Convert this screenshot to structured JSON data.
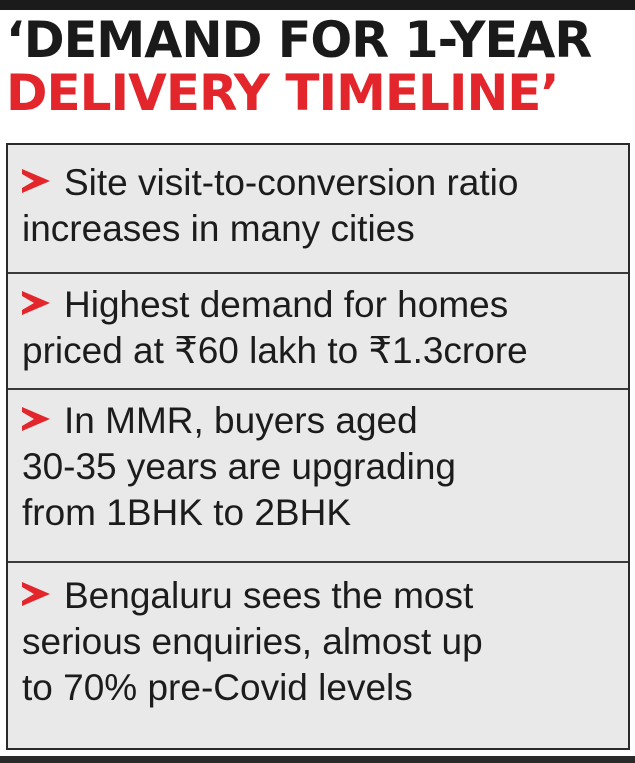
{
  "headline": {
    "line1": "‘DEMAND FOR 1-YEAR",
    "line2": "DELIVERY TIMELINE’"
  },
  "items": [
    {
      "lines": [
        "Site visit-to-conversion ratio",
        "increases in many cities"
      ]
    },
    {
      "lines": [
        "Highest demand for homes",
        "priced at ₹60 lakh to ₹1.3crore"
      ]
    },
    {
      "lines": [
        "In MMR, buyers aged",
        "30-35 years are upgrading",
        "from 1BHK to 2BHK"
      ]
    },
    {
      "lines": [
        "Bengaluru sees the most",
        "serious enquiries, almost up",
        "to 70% pre-Covid levels"
      ]
    }
  ],
  "colors": {
    "accent": "#e2262b",
    "text": "#1c1c1c",
    "box": "#e9e9e9"
  }
}
